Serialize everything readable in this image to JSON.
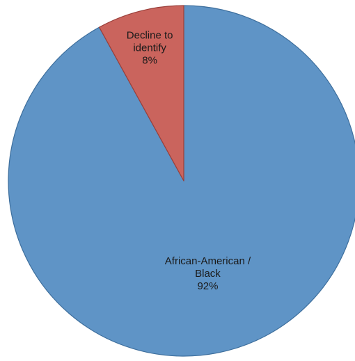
{
  "chart_data": {
    "type": "pie",
    "title": "",
    "slices": [
      {
        "label_lines": [
          "African-American /",
          "Black"
        ],
        "value": 92,
        "value_label": "92%",
        "color": "#5f94c6",
        "border": "#3e6f9d"
      },
      {
        "label_lines": [
          "Decline to",
          "identify"
        ],
        "value": 8,
        "value_label": "8%",
        "color": "#ca645d",
        "border": "#9a3f3a"
      }
    ],
    "start_angle_deg": 0,
    "direction": "clockwise",
    "data_labels": "inside",
    "legend": "none"
  }
}
